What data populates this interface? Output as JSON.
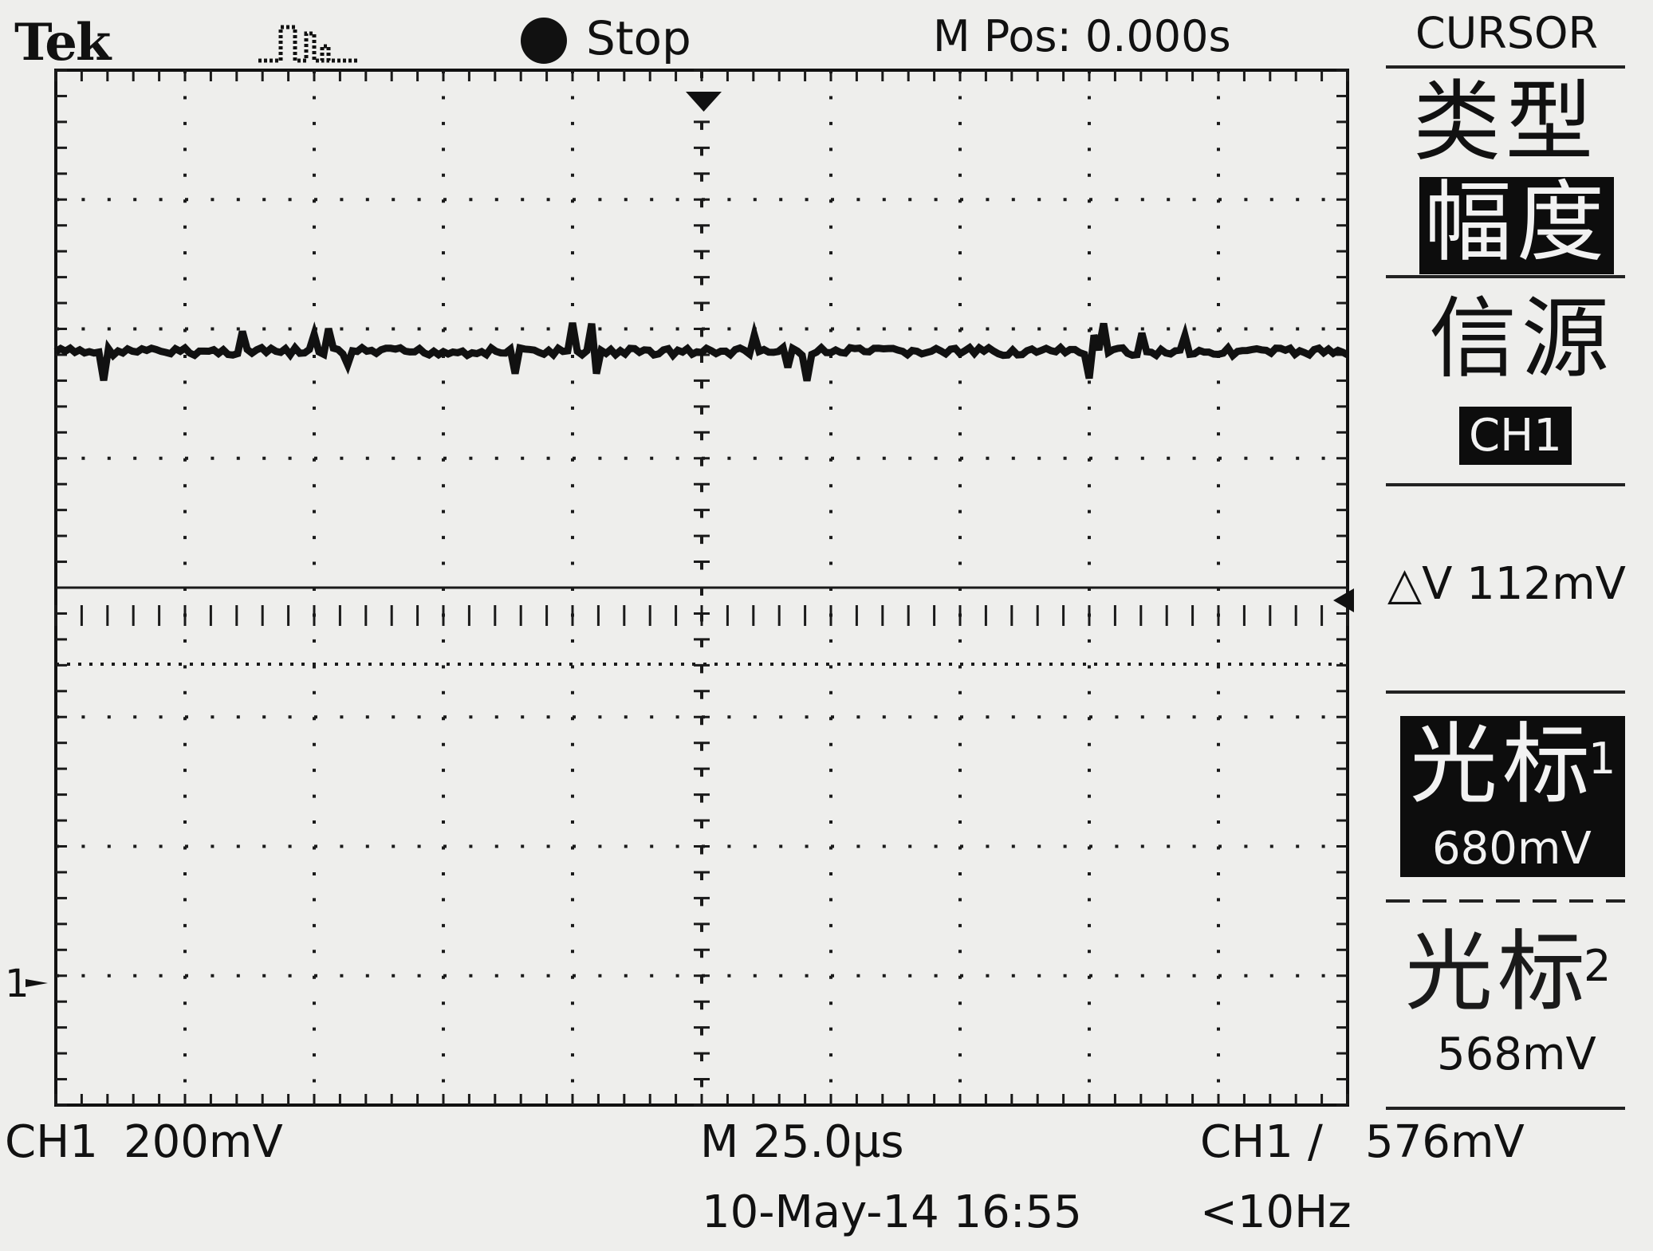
{
  "header": {
    "brand": "Tek",
    "acquisition_icon": "pulse-icon",
    "run_status": "Stop",
    "horizontal_position": "M Pos: 0.000s"
  },
  "menu": {
    "title": "CURSOR",
    "type_label": "类型",
    "type_value": "幅度",
    "source_label": "信源",
    "source_value": "CH1",
    "delta": "△V 112mV",
    "cursor1_label": "光标",
    "cursor1_index": "1",
    "cursor1_value": "680mV",
    "cursor2_label": "光标",
    "cursor2_index": "2",
    "cursor2_value": "568mV"
  },
  "screen": {
    "channel_marker": "1",
    "colors": {
      "trace": "#111111",
      "background": "#eeeeec",
      "grid": "#222222"
    }
  },
  "footer": {
    "channel": "CH1",
    "volts_per_div": "200mV",
    "timebase": "M 25.0µs",
    "trigger_source": "CH1",
    "trigger_slope": "/",
    "trigger_level": "576mV",
    "date_time": "10-May-14 16:55",
    "frequency": "<10Hz"
  }
}
